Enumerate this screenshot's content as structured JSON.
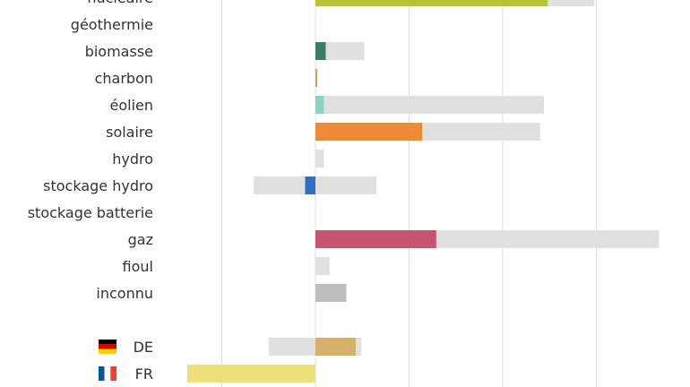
{
  "chart_data": {
    "type": "bar",
    "orientation": "horizontal",
    "x_gridlines": [
      -1,
      0,
      1,
      2,
      3
    ],
    "grid": true,
    "categories": [
      {
        "label": "nucléaire",
        "value": 2.48,
        "range": [
          0,
          2.98
        ],
        "color": "#b5c334"
      },
      {
        "label": "géothermie",
        "value": null,
        "range": null,
        "color": null
      },
      {
        "label": "biomasse",
        "value": 0.11,
        "range": [
          0,
          0.52
        ],
        "color": "#3d7c65"
      },
      {
        "label": "charbon",
        "value": 0.02,
        "range": null,
        "color": "#c8a060"
      },
      {
        "label": "éolien",
        "value": 0.09,
        "range": [
          0,
          2.44
        ],
        "color": "#8cd3bf"
      },
      {
        "label": "solaire",
        "value": 1.14,
        "range": [
          0,
          2.4
        ],
        "color": "#ec8a35"
      },
      {
        "label": "hydro",
        "value": null,
        "range": [
          0,
          0.09
        ],
        "color": null
      },
      {
        "label": "stockage hydro",
        "value": -0.11,
        "range": [
          -0.66,
          0.65
        ],
        "color": "#2f6fc6"
      },
      {
        "label": "stockage batterie",
        "value": null,
        "range": null,
        "color": null
      },
      {
        "label": "gaz",
        "value": 1.29,
        "range": [
          0,
          3.67
        ],
        "color": "#c6546d"
      },
      {
        "label": "fioul",
        "value": null,
        "range": [
          0,
          0.15
        ],
        "color": null
      },
      {
        "label": "inconnu",
        "value": 0.33,
        "range": null,
        "color": "#bdbdbd"
      }
    ],
    "exchanges": [
      {
        "label": "DE",
        "flag": "germany-flag",
        "value": 0.43,
        "range": [
          -0.5,
          0.49
        ],
        "color": "#d4b06a"
      },
      {
        "label": "FR",
        "flag": "france-flag",
        "value": -1.37,
        "range": null,
        "color": "#efdf7a"
      }
    ],
    "range_color": "#e0e0e0"
  }
}
